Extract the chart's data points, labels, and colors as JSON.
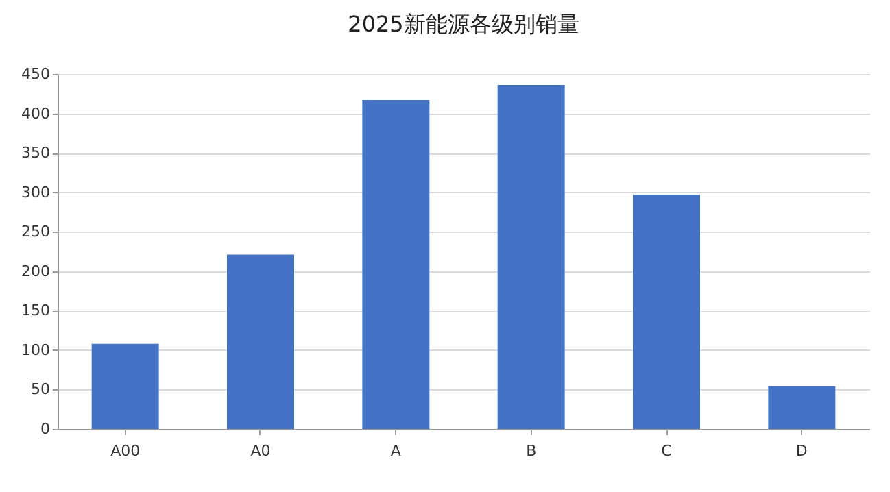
{
  "chart_data": {
    "type": "bar",
    "title": "2025新能源各级别销量",
    "categories": [
      "A00",
      "A0",
      "A",
      "B",
      "C",
      "D"
    ],
    "values": [
      108,
      221,
      417,
      436,
      297,
      54
    ],
    "color": "#4472c4",
    "ylim": [
      0,
      450
    ],
    "yticks": [
      0,
      50,
      100,
      150,
      200,
      250,
      300,
      350,
      400,
      450
    ],
    "grid": "y"
  }
}
